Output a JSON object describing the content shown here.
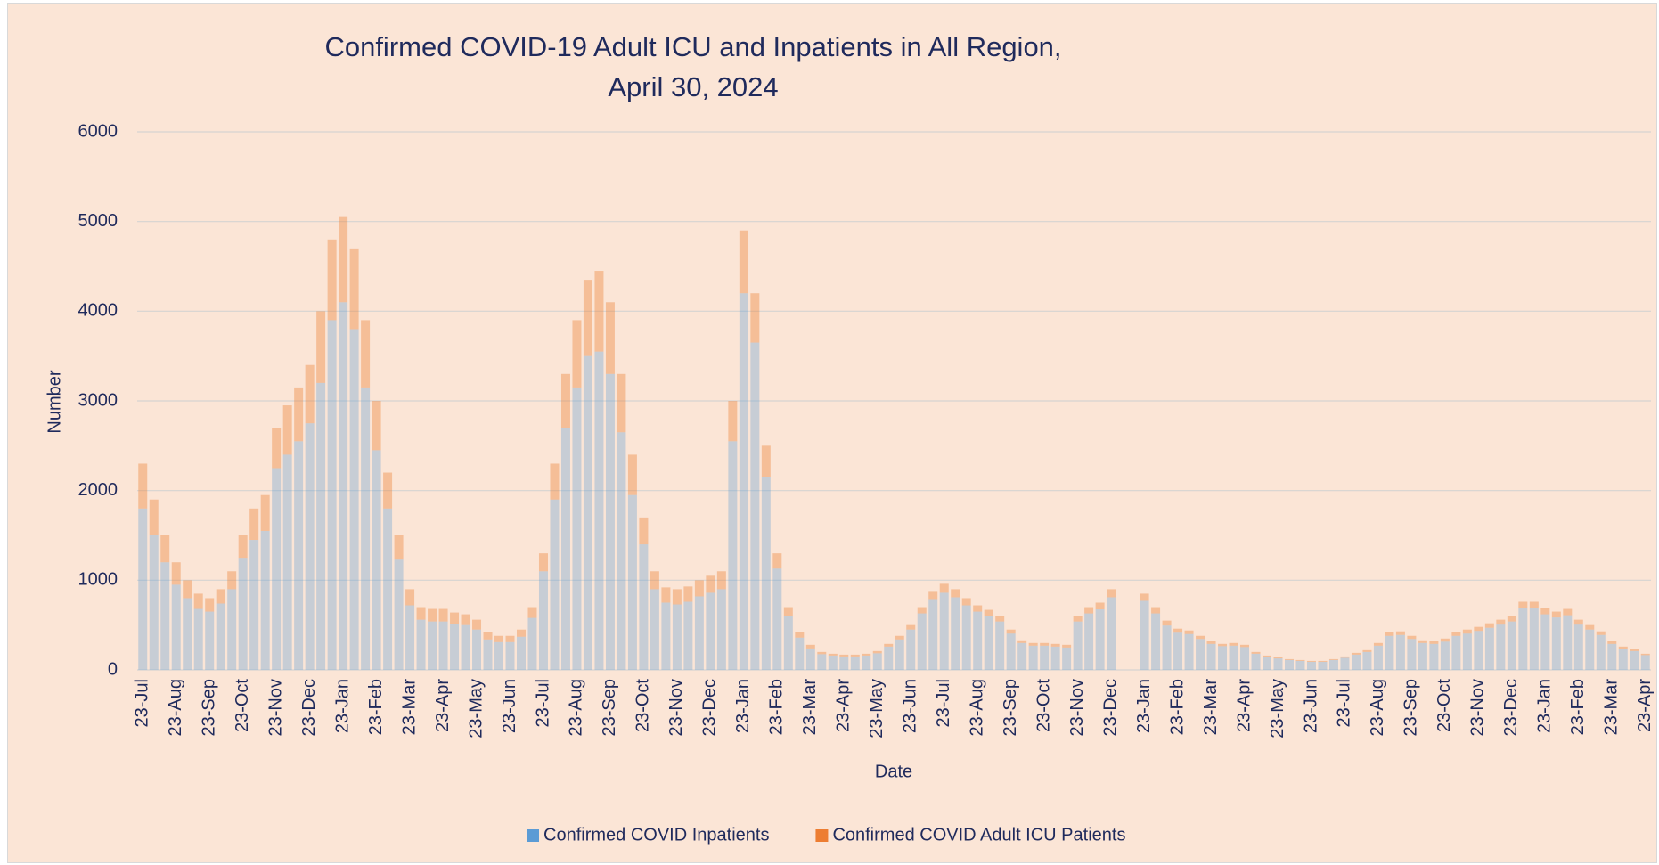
{
  "chart_data": {
    "type": "stacked_bar",
    "title": "Confirmed COVID-19 Adult ICU and Inpatients in All Region,\nApril 30, 2024",
    "x_label": "Date",
    "y_label": "Number",
    "ylim": [
      0,
      6000
    ],
    "yticks": [
      0,
      1000,
      2000,
      3000,
      4000,
      5000,
      6000
    ],
    "grid": true,
    "legend": "bottom",
    "categories": [
      "23-Jul",
      null,
      null,
      "23-Aug",
      null,
      null,
      "23-Sep",
      null,
      null,
      "23-Oct",
      null,
      null,
      "23-Nov",
      null,
      null,
      "23-Dec",
      null,
      null,
      "23-Jan",
      null,
      null,
      "23-Feb",
      null,
      null,
      "23-Mar",
      null,
      null,
      "23-Apr",
      null,
      null,
      "23-May",
      null,
      null,
      "23-Jun",
      null,
      null,
      "23-Jul",
      null,
      null,
      "23-Aug",
      null,
      null,
      "23-Sep",
      null,
      null,
      "23-Oct",
      null,
      null,
      "23-Nov",
      null,
      null,
      "23-Dec",
      null,
      null,
      "23-Jan",
      null,
      null,
      "23-Feb",
      null,
      null,
      "23-Mar",
      null,
      null,
      "23-Apr",
      null,
      null,
      "23-May",
      null,
      null,
      "23-Jun",
      null,
      null,
      "23-Jul",
      null,
      null,
      "23-Aug",
      null,
      null,
      "23-Sep",
      null,
      null,
      "23-Oct",
      null,
      null,
      "23-Nov",
      null,
      null,
      "23-Dec",
      null,
      null,
      "23-Jan",
      null,
      null,
      "23-Feb",
      null,
      null,
      "23-Mar",
      null,
      null,
      "23-Apr",
      null,
      null,
      "23-May",
      null,
      null,
      "23-Jun",
      null,
      null,
      "23-Jul",
      null,
      null,
      "23-Aug",
      null,
      null,
      "23-Sep",
      null,
      null,
      "23-Oct",
      null,
      null,
      "23-Nov",
      null,
      null,
      "23-Dec",
      null,
      null,
      "23-Jan",
      null,
      null,
      "23-Feb",
      null,
      null,
      "23-Mar",
      null,
      null,
      "23-Apr"
    ],
    "series": [
      {
        "name": "Confirmed COVID Inpatients",
        "color": "#5b9bd5",
        "values": [
          1800,
          1500,
          1200,
          950,
          800,
          680,
          650,
          740,
          900,
          1250,
          1450,
          1550,
          2250,
          2400,
          2550,
          2750,
          3200,
          3900,
          4100,
          3800,
          3150,
          2450,
          1800,
          1230,
          720,
          560,
          540,
          540,
          510,
          500,
          450,
          340,
          310,
          310,
          370,
          580,
          1100,
          1900,
          2700,
          3150,
          3500,
          3550,
          3300,
          2650,
          1950,
          1400,
          900,
          750,
          730,
          760,
          820,
          860,
          900,
          2550,
          4200,
          3650,
          2150,
          1130,
          600,
          360,
          240,
          175,
          160,
          150,
          150,
          160,
          185,
          260,
          340,
          450,
          630,
          790,
          860,
          810,
          720,
          650,
          600,
          540,
          405,
          300,
          270,
          270,
          260,
          250,
          540,
          630,
          675,
          810,
          null,
          null,
          770,
          630,
          495,
          415,
          400,
          345,
          290,
          265,
          270,
          255,
          180,
          145,
          128,
          110,
          100,
          90,
          90,
          110,
          135,
          170,
          200,
          270,
          380,
          390,
          345,
          300,
          290,
          315,
          380,
          405,
          435,
          470,
          505,
          540,
          685,
          685,
          620,
          585,
          610,
          505,
          450,
          390,
          290,
          235,
          210,
          165
        ]
      },
      {
        "name": "Confirmed COVID Adult ICU Patients",
        "color": "#ed7d31",
        "values": [
          500,
          400,
          300,
          250,
          200,
          170,
          150,
          160,
          200,
          250,
          350,
          400,
          450,
          550,
          600,
          650,
          800,
          900,
          950,
          900,
          750,
          550,
          400,
          270,
          180,
          140,
          140,
          140,
          130,
          120,
          110,
          80,
          70,
          70,
          80,
          120,
          200,
          400,
          600,
          750,
          850,
          900,
          800,
          650,
          450,
          300,
          200,
          170,
          170,
          170,
          180,
          190,
          200,
          450,
          700,
          550,
          350,
          170,
          100,
          60,
          40,
          25,
          20,
          20,
          20,
          20,
          25,
          30,
          40,
          50,
          70,
          90,
          100,
          90,
          80,
          70,
          70,
          60,
          45,
          30,
          30,
          30,
          30,
          30,
          60,
          70,
          75,
          90,
          null,
          null,
          80,
          70,
          55,
          45,
          40,
          35,
          30,
          25,
          30,
          25,
          20,
          15,
          12,
          10,
          10,
          10,
          10,
          10,
          15,
          20,
          20,
          30,
          40,
          40,
          35,
          30,
          30,
          35,
          40,
          45,
          45,
          50,
          55,
          60,
          75,
          75,
          70,
          65,
          70,
          55,
          50,
          40,
          30,
          25,
          20,
          15
        ]
      }
    ]
  }
}
